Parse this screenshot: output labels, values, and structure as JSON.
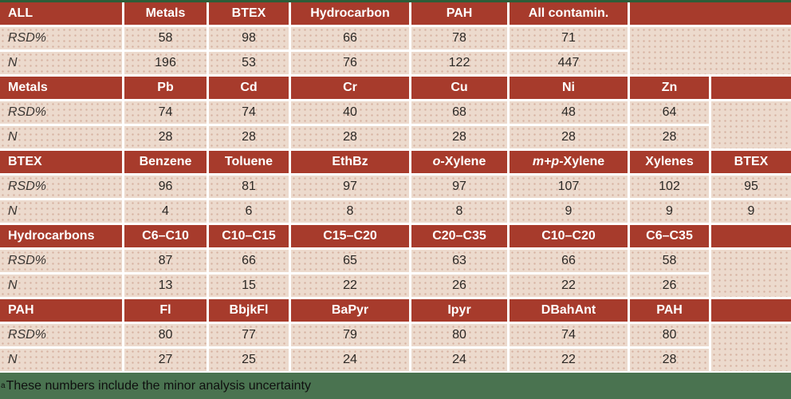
{
  "page": {
    "footnote": {
      "marker": "a",
      "text": "These numbers include the minor analysis uncertainty"
    }
  },
  "table": {
    "row_labels": {
      "rsd": "RSD%",
      "n": "N"
    },
    "blocks": [
      {
        "label": "ALL",
        "headers": [
          "Metals",
          "BTEX",
          "Hydrocarbon",
          "PAH",
          "All contamin."
        ],
        "rsd": [
          58,
          98,
          66,
          78,
          71
        ],
        "n": [
          196,
          53,
          76,
          122,
          447
        ]
      },
      {
        "label": "Metals",
        "headers": [
          "Pb",
          "Cd",
          "Cr",
          "Cu",
          "Ni",
          "Zn"
        ],
        "rsd": [
          74,
          74,
          40,
          68,
          48,
          64
        ],
        "n": [
          28,
          28,
          28,
          28,
          28,
          28
        ]
      },
      {
        "label": "BTEX",
        "headers": [
          "Benzene",
          "Toluene",
          "EthBz",
          "o-Xylene",
          "m+p-Xylene",
          "Xylenes",
          "BTEX"
        ],
        "o_prefix": "o",
        "o_rest": "-Xylene",
        "mp_prefix": "m+p",
        "mp_rest": "-Xylene",
        "rsd": [
          96,
          81,
          97,
          97,
          107,
          102,
          95
        ],
        "n": [
          4,
          6,
          8,
          8,
          9,
          9,
          9
        ]
      },
      {
        "label": "Hydrocarbons",
        "headers": [
          "C6–C10",
          "C10–C15",
          "C15–C20",
          "C20–C35",
          "C10–C20",
          "C6–C35"
        ],
        "rsd": [
          87,
          66,
          65,
          63,
          66,
          58
        ],
        "n": [
          13,
          15,
          22,
          26,
          22,
          26
        ]
      },
      {
        "label": "PAH",
        "headers": [
          "Fl",
          "BbjkFl",
          "BaPyr",
          "Ipyr",
          "DBahAnt",
          "PAH"
        ],
        "rsd": [
          80,
          77,
          79,
          80,
          74,
          80
        ],
        "n": [
          27,
          25,
          24,
          24,
          22,
          28
        ]
      }
    ]
  },
  "colors": {
    "header_red": "#a73b2c",
    "cell_pink": "#ecdacd",
    "rule_green_top": "#2d5e38",
    "footer_green": "#4a7350",
    "header_text": "#ffffff",
    "body_text": "#2b2825"
  },
  "chart_data": {
    "type": "table",
    "title": "RSD% and N summary per contaminant group",
    "groups": [
      "ALL",
      "Metals",
      "BTEX",
      "Hydrocarbons",
      "PAH"
    ],
    "rows_per_group": [
      "RSD%",
      "N"
    ],
    "all": {
      "columns": [
        "Metals",
        "BTEX",
        "Hydrocarbon",
        "PAH",
        "All contamin."
      ],
      "rsd": [
        58,
        98,
        66,
        78,
        71
      ],
      "n": [
        196,
        53,
        76,
        122,
        447
      ]
    },
    "metals": {
      "columns": [
        "Pb",
        "Cd",
        "Cr",
        "Cu",
        "Ni",
        "Zn"
      ],
      "rsd": [
        74,
        74,
        40,
        68,
        48,
        64
      ],
      "n": [
        28,
        28,
        28,
        28,
        28,
        28
      ]
    },
    "btex": {
      "columns": [
        "Benzene",
        "Toluene",
        "EthBz",
        "o-Xylene",
        "m+p-Xylene",
        "Xylenes",
        "BTEX"
      ],
      "rsd": [
        96,
        81,
        97,
        97,
        107,
        102,
        95
      ],
      "n": [
        4,
        6,
        8,
        8,
        9,
        9,
        9
      ]
    },
    "hydrocarbons": {
      "columns": [
        "C6–C10",
        "C10–C15",
        "C15–C20",
        "C20–C35",
        "C10–C20",
        "C6–C35"
      ],
      "rsd": [
        87,
        66,
        65,
        63,
        66,
        58
      ],
      "n": [
        13,
        15,
        22,
        26,
        22,
        26
      ]
    },
    "pah": {
      "columns": [
        "Fl",
        "BbjkFl",
        "BaPyr",
        "Ipyr",
        "DBahAnt",
        "PAH"
      ],
      "rsd": [
        80,
        77,
        79,
        80,
        74,
        80
      ],
      "n": [
        27,
        25,
        24,
        24,
        22,
        28
      ]
    },
    "footnote": "aThese numbers include the minor analysis uncertainty"
  }
}
